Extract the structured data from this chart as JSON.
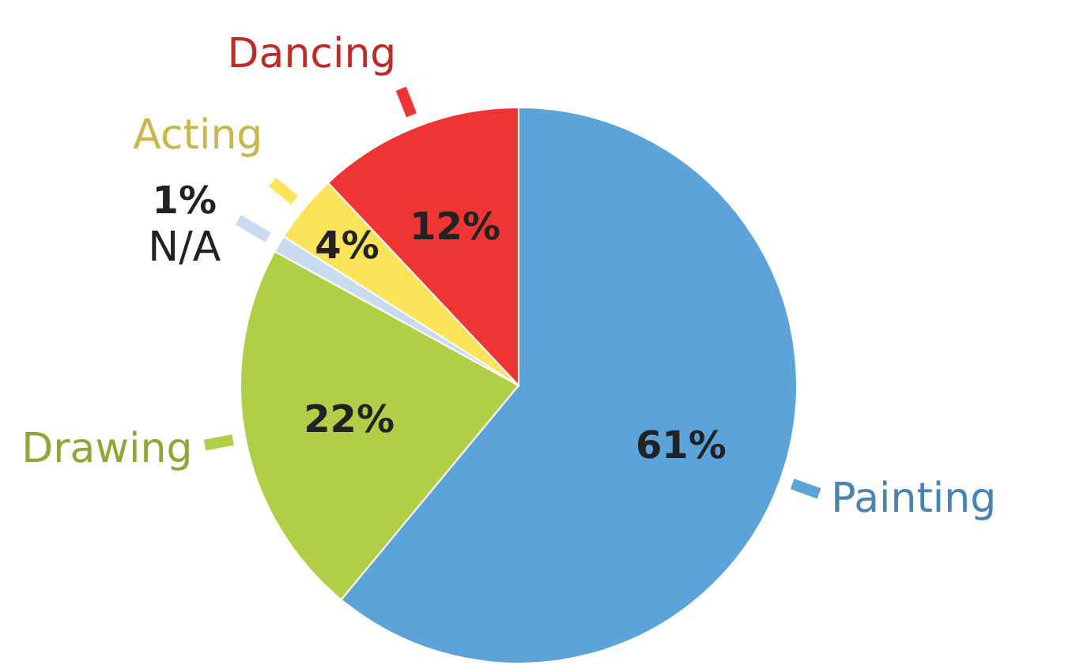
{
  "chart_data": {
    "type": "pie",
    "categories": [
      "Painting",
      "Drawing",
      "N/A",
      "Acting",
      "Dancing"
    ],
    "values": [
      61,
      22,
      1,
      4,
      12
    ],
    "colors": [
      "#5ba3d9",
      "#b0cf46",
      "#c9dcef",
      "#fbe35a",
      "#ee3533"
    ],
    "value_labels": [
      "61%",
      "22%",
      "1%",
      "4%",
      "12%"
    ]
  }
}
